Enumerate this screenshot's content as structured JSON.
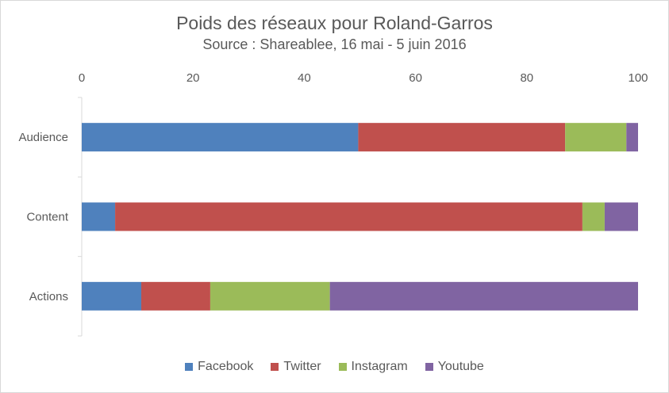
{
  "chart_data": {
    "type": "bar",
    "orientation": "horizontal",
    "stacked": true,
    "title": "Poids des réseaux pour Roland-Garros",
    "subtitle": "Source : Shareablee, 16 mai - 5 juin 2016",
    "categories": [
      "Audience",
      "Content",
      "Actions"
    ],
    "xlim": [
      0,
      100
    ],
    "xticks": [
      0,
      20,
      40,
      60,
      80,
      100
    ],
    "x_axis_position": "top",
    "grid": false,
    "legend_position": "bottom",
    "series": [
      {
        "name": "Facebook",
        "color": "#4f81bd",
        "values": [
          49.7,
          6.0,
          10.7
        ]
      },
      {
        "name": "Twitter",
        "color": "#c0504d",
        "values": [
          37.2,
          84.0,
          12.4
        ]
      },
      {
        "name": "Instagram",
        "color": "#9bbb59",
        "values": [
          11.0,
          4.0,
          21.5
        ]
      },
      {
        "name": "Youtube",
        "color": "#8064a2",
        "values": [
          2.1,
          6.0,
          55.4
        ]
      }
    ]
  }
}
